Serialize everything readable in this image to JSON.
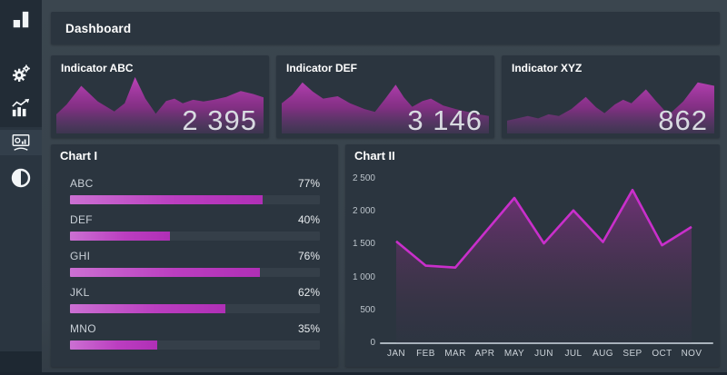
{
  "colors": {
    "page_background": "#37424b",
    "panel_background": "#2b353f",
    "sidebar_background": "#2a3540",
    "sidebar_top_background": "#222c36",
    "accent_magenta": "#b832bd",
    "accent_magenta_light": "#cb70d2",
    "line_magenta": "#c92fcb",
    "title_text": "#ffffff",
    "value_text": "#d8dbe1",
    "label_text": "#c9d0d7",
    "axis_line": "#aab4bd"
  },
  "sidebar": {
    "items": [
      {
        "icon": "bar-chart-logo-icon",
        "active": false
      },
      {
        "icon": "settings-gears-icon",
        "active": false
      },
      {
        "icon": "stats-growth-icon",
        "active": false
      },
      {
        "icon": "presentation-chart-icon",
        "active": true
      },
      {
        "icon": "contrast-icon",
        "active": false
      }
    ]
  },
  "header": {
    "title": "Dashboard"
  },
  "indicators": [
    {
      "title": "Indicator ABC",
      "value": "2 395",
      "spark_points": [
        [
          0,
          0.33
        ],
        [
          0.05,
          0.5
        ],
        [
          0.12,
          0.82
        ],
        [
          0.2,
          0.55
        ],
        [
          0.28,
          0.38
        ],
        [
          0.33,
          0.52
        ],
        [
          0.38,
          0.97
        ],
        [
          0.43,
          0.6
        ],
        [
          0.48,
          0.34
        ],
        [
          0.53,
          0.56
        ],
        [
          0.57,
          0.6
        ],
        [
          0.61,
          0.52
        ],
        [
          0.66,
          0.58
        ],
        [
          0.71,
          0.55
        ],
        [
          0.76,
          0.58
        ],
        [
          0.82,
          0.63
        ],
        [
          0.89,
          0.73
        ],
        [
          0.95,
          0.68
        ],
        [
          1,
          0.62
        ]
      ]
    },
    {
      "title": "Indicator DEF",
      "value": "3 146",
      "spark_points": [
        [
          0,
          0.52
        ],
        [
          0.05,
          0.66
        ],
        [
          0.1,
          0.88
        ],
        [
          0.15,
          0.72
        ],
        [
          0.2,
          0.6
        ],
        [
          0.27,
          0.64
        ],
        [
          0.33,
          0.52
        ],
        [
          0.4,
          0.42
        ],
        [
          0.45,
          0.37
        ],
        [
          0.5,
          0.6
        ],
        [
          0.55,
          0.84
        ],
        [
          0.59,
          0.62
        ],
        [
          0.63,
          0.46
        ],
        [
          0.68,
          0.56
        ],
        [
          0.72,
          0.6
        ],
        [
          0.78,
          0.48
        ],
        [
          0.84,
          0.42
        ],
        [
          0.9,
          0.37
        ],
        [
          0.95,
          0.33
        ],
        [
          1,
          0.3
        ]
      ]
    },
    {
      "title": "Indicator XYZ",
      "value": "862",
      "spark_points": [
        [
          0,
          0.22
        ],
        [
          0.05,
          0.26
        ],
        [
          0.1,
          0.3
        ],
        [
          0.15,
          0.26
        ],
        [
          0.2,
          0.33
        ],
        [
          0.25,
          0.3
        ],
        [
          0.31,
          0.42
        ],
        [
          0.38,
          0.63
        ],
        [
          0.43,
          0.45
        ],
        [
          0.47,
          0.35
        ],
        [
          0.52,
          0.5
        ],
        [
          0.56,
          0.58
        ],
        [
          0.6,
          0.52
        ],
        [
          0.67,
          0.76
        ],
        [
          0.72,
          0.55
        ],
        [
          0.78,
          0.32
        ],
        [
          0.85,
          0.55
        ],
        [
          0.92,
          0.88
        ],
        [
          1,
          0.82
        ]
      ]
    }
  ],
  "chart_data": [
    {
      "type": "bar",
      "orientation": "horizontal",
      "title": "Chart I",
      "categories": [
        "ABC",
        "DEF",
        "GHI",
        "JKL",
        "MNO"
      ],
      "values": [
        77,
        40,
        76,
        62,
        35
      ],
      "value_labels": [
        "77%",
        "40%",
        "76%",
        "62%",
        "35%"
      ],
      "xlim": [
        0,
        100
      ],
      "unit": "%",
      "grid": false
    },
    {
      "type": "area",
      "title": "Chart II",
      "categories": [
        "JAN",
        "FEB",
        "MAR",
        "APR",
        "MAY",
        "JUN",
        "JUL",
        "AUG",
        "SEP",
        "OCT",
        "NOV"
      ],
      "values": [
        1550,
        1180,
        1150,
        1680,
        2210,
        1520,
        2020,
        1540,
        2330,
        1490,
        1770
      ],
      "ylim": [
        0,
        2500
      ],
      "ytick_step": 500,
      "ytick_labels": [
        "0",
        "500",
        "1 000",
        "1 500",
        "2 000",
        "2 500"
      ],
      "grid": false,
      "legend": "none"
    }
  ]
}
